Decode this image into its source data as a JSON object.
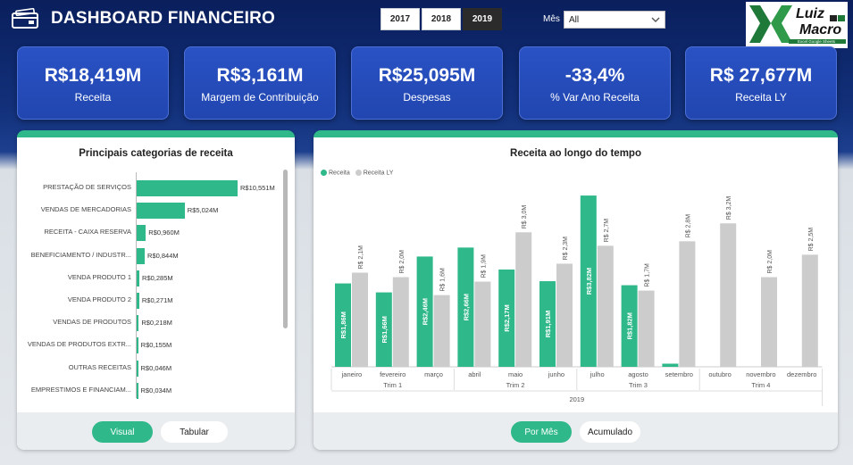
{
  "header": {
    "title": "DASHBOARD FINANCEIRO",
    "years": [
      "2017",
      "2018",
      "2019"
    ],
    "active_year": "2019",
    "month_label": "Mês",
    "month_value": "All",
    "brand_line1": "Luiz",
    "brand_line2": "Macro",
    "brand_sub": "Excel Google Sheets"
  },
  "kpis": [
    {
      "value": "R$18,419M",
      "label": "Receita"
    },
    {
      "value": "R$3,161M",
      "label": "Margem de Contribuição"
    },
    {
      "value": "R$25,095M",
      "label": "Despesas"
    },
    {
      "value": "-33,4%",
      "label": "% Var Ano Receita"
    },
    {
      "value": "R$ 27,677M",
      "label": "Receita LY"
    }
  ],
  "left_panel": {
    "title": "Principais categorias de receita",
    "toggle": [
      "Visual",
      "Tabular"
    ],
    "active_toggle": "Visual"
  },
  "right_panel": {
    "title": "Receita ao longo do tempo",
    "toggle": [
      "Por Mês",
      "Acumulado"
    ],
    "active_toggle": "Por Mês"
  },
  "colors": {
    "receita": "#2fb889",
    "receita_ly": "#cccccc",
    "kpi": "#2146b0"
  },
  "chart_data": [
    {
      "type": "bar",
      "orientation": "horizontal",
      "title": "Principais categorias de receita",
      "categories": [
        "PRESTAÇÃO DE SERVIÇOS",
        "VENDAS DE MERCADORIAS",
        "RECEITA - CAIXA RESERVA",
        "BENEFICIAMENTO / INDUSTR...",
        "VENDA PRODUTO 1",
        "VENDA PRODUTO 2",
        "VENDAS DE PRODUTOS",
        "VENDAS DE PRODUTOS EXTR...",
        "OUTRAS RECEITAS",
        "EMPRESTIMOS E FINANCIAM..."
      ],
      "values": [
        10.551,
        5.024,
        0.96,
        0.844,
        0.285,
        0.271,
        0.218,
        0.155,
        0.046,
        0.034
      ],
      "labels": [
        "R$10,551M",
        "R$5,024M",
        "R$0,960M",
        "R$0,844M",
        "R$0,285M",
        "R$0,271M",
        "R$0,218M",
        "R$0,155M",
        "R$0,046M",
        "R$0,034M"
      ]
    },
    {
      "type": "bar",
      "title": "Receita ao longo do tempo",
      "categories": [
        "janeiro",
        "fevereiro",
        "março",
        "abril",
        "maio",
        "junho",
        "julho",
        "agosto",
        "setembro",
        "outubro",
        "novembro",
        "dezembro"
      ],
      "quarters": [
        "Trim 1",
        "Trim 2",
        "Trim 3",
        "Trim 4"
      ],
      "year": "2019",
      "series": [
        {
          "name": "Receita",
          "values": [
            1.86,
            1.66,
            2.46,
            2.66,
            2.17,
            1.91,
            3.82,
            1.82,
            0.07,
            null,
            null,
            null
          ],
          "labels": [
            "R$1,86M",
            "R$1,66M",
            "R$2,46M",
            "R$2,66M",
            "R$2,17M",
            "R$1,91M",
            "R$3,82M",
            "R$1,82M",
            "",
            "",
            "",
            ""
          ]
        },
        {
          "name": "Receita LY",
          "values": [
            2.1,
            2.0,
            1.6,
            1.9,
            3.0,
            2.3,
            2.7,
            1.7,
            2.8,
            3.2,
            2.0,
            2.5
          ],
          "labels": [
            "R$ 2,1M",
            "R$ 2,0M",
            "R$ 1,6M",
            "R$ 1,9M",
            "R$ 3,0M",
            "R$ 2,3M",
            "R$ 2,7M",
            "R$ 1,7M",
            "R$ 2,8M",
            "R$ 3,2M",
            "R$ 2,0M",
            "R$ 2,5M"
          ]
        }
      ],
      "ylim": [
        0,
        4.2
      ],
      "legend": "top-left"
    }
  ]
}
